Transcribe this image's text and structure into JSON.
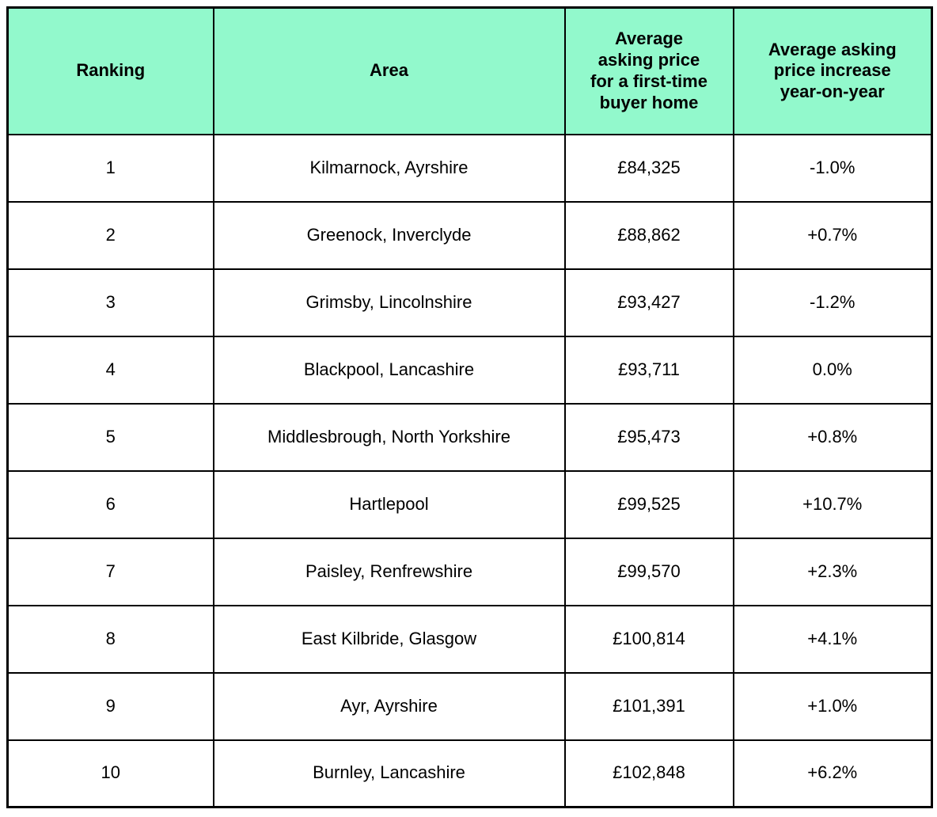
{
  "style": {
    "header_bg": "#92F9CC",
    "border_color": "#000000",
    "text_color": "#000000",
    "page_bg": "#FFFFFF"
  },
  "chart_data": {
    "type": "table",
    "columns": [
      "Ranking",
      "Area",
      "Average asking price for a first-time buyer home",
      "Average asking price increase year-on-year"
    ],
    "rows": [
      [
        "1",
        "Kilmarnock, Ayrshire",
        "£84,325",
        "-1.0%"
      ],
      [
        "2",
        "Greenock, Inverclyde",
        "£88,862",
        "+0.7%"
      ],
      [
        "3",
        "Grimsby, Lincolnshire",
        "£93,427",
        "-1.2%"
      ],
      [
        "4",
        "Blackpool, Lancashire",
        "£93,711",
        "0.0%"
      ],
      [
        "5",
        "Middlesbrough, North Yorkshire",
        "£95,473",
        "+0.8%"
      ],
      [
        "6",
        "Hartlepool",
        "£99,525",
        "+10.7%"
      ],
      [
        "7",
        "Paisley, Renfrewshire",
        "£99,570",
        "+2.3%"
      ],
      [
        "8",
        "East Kilbride, Glasgow",
        "£100,814",
        "+4.1%"
      ],
      [
        "9",
        "Ayr, Ayrshire",
        "£101,391",
        "+1.0%"
      ],
      [
        "10",
        "Burnley, Lancashire",
        "£102,848",
        "+6.2%"
      ]
    ]
  }
}
